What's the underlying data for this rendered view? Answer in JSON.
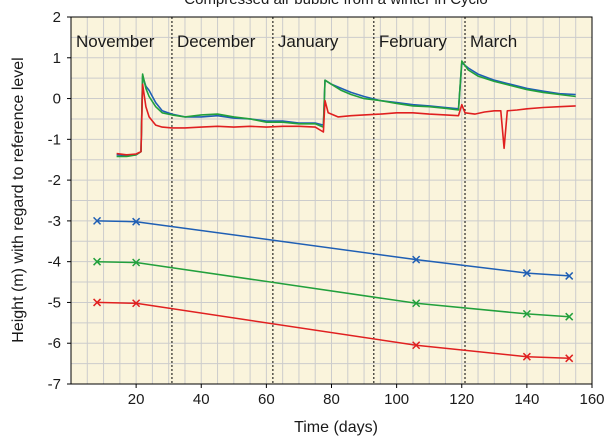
{
  "chart_data": {
    "type": "line",
    "title": "Compressed air bubble from a winter in Cyclo",
    "xlabel": "Time (days)",
    "ylabel": "Height (m) with regard to reference level",
    "xlim": [
      0,
      160
    ],
    "ylim": [
      -7,
      2
    ],
    "xticks": [
      20,
      40,
      60,
      80,
      100,
      120,
      140,
      160
    ],
    "yticks": [
      2,
      1,
      0,
      -1,
      -2,
      -3,
      -4,
      -5,
      -6,
      -7
    ],
    "grid": true,
    "background_color": "#faf4dc",
    "grid_color": "#cccccc",
    "months": [
      {
        "label": "November",
        "start": 0,
        "end": 31
      },
      {
        "label": "December",
        "start": 31,
        "end": 62
      },
      {
        "label": "January",
        "start": 62,
        "end": 93
      },
      {
        "label": "February",
        "start": 93,
        "end": 121
      },
      {
        "label": "March",
        "start": 121,
        "end": 160
      }
    ],
    "month_boundaries": [
      31,
      62,
      93,
      121
    ],
    "series": [
      {
        "color": "#1f5fb4",
        "type": "measured",
        "points": [
          [
            14,
            -1.38
          ],
          [
            17,
            -1.4
          ],
          [
            20,
            -1.38
          ],
          [
            21.5,
            -1.3
          ],
          [
            22,
            0.55
          ],
          [
            23,
            0.3
          ],
          [
            24,
            0.2
          ],
          [
            26,
            -0.1
          ],
          [
            28,
            -0.3
          ],
          [
            31,
            -0.38
          ],
          [
            35,
            -0.45
          ],
          [
            40,
            -0.45
          ],
          [
            45,
            -0.42
          ],
          [
            50,
            -0.48
          ],
          [
            55,
            -0.5
          ],
          [
            60,
            -0.55
          ],
          [
            65,
            -0.55
          ],
          [
            70,
            -0.6
          ],
          [
            75,
            -0.6
          ],
          [
            77.5,
            -0.65
          ],
          [
            78,
            0.45
          ],
          [
            80,
            0.35
          ],
          [
            83,
            0.25
          ],
          [
            86,
            0.15
          ],
          [
            90,
            0.05
          ],
          [
            95,
            -0.05
          ],
          [
            100,
            -0.1
          ],
          [
            105,
            -0.15
          ],
          [
            110,
            -0.18
          ],
          [
            115,
            -0.22
          ],
          [
            119,
            -0.25
          ],
          [
            120,
            0.88
          ],
          [
            122,
            0.75
          ],
          [
            125,
            0.6
          ],
          [
            130,
            0.45
          ],
          [
            135,
            0.35
          ],
          [
            140,
            0.25
          ],
          [
            145,
            0.18
          ],
          [
            150,
            0.12
          ],
          [
            155,
            0.1
          ]
        ]
      },
      {
        "color": "#22a03c",
        "type": "measured",
        "points": [
          [
            14,
            -1.42
          ],
          [
            17,
            -1.42
          ],
          [
            20,
            -1.38
          ],
          [
            21.5,
            -1.3
          ],
          [
            22,
            0.6
          ],
          [
            23,
            0.25
          ],
          [
            24,
            0.05
          ],
          [
            26,
            -0.2
          ],
          [
            28,
            -0.35
          ],
          [
            31,
            -0.4
          ],
          [
            35,
            -0.45
          ],
          [
            40,
            -0.4
          ],
          [
            45,
            -0.38
          ],
          [
            50,
            -0.45
          ],
          [
            55,
            -0.5
          ],
          [
            60,
            -0.58
          ],
          [
            65,
            -0.58
          ],
          [
            70,
            -0.62
          ],
          [
            75,
            -0.62
          ],
          [
            77.5,
            -0.7
          ],
          [
            78,
            0.45
          ],
          [
            80,
            0.35
          ],
          [
            83,
            0.2
          ],
          [
            86,
            0.1
          ],
          [
            90,
            0.0
          ],
          [
            95,
            -0.05
          ],
          [
            100,
            -0.12
          ],
          [
            105,
            -0.18
          ],
          [
            110,
            -0.2
          ],
          [
            115,
            -0.24
          ],
          [
            119,
            -0.28
          ],
          [
            120,
            0.92
          ],
          [
            122,
            0.7
          ],
          [
            125,
            0.55
          ],
          [
            130,
            0.42
          ],
          [
            135,
            0.32
          ],
          [
            140,
            0.22
          ],
          [
            145,
            0.15
          ],
          [
            150,
            0.1
          ],
          [
            155,
            0.05
          ]
        ]
      },
      {
        "color": "#e02020",
        "type": "measured",
        "points": [
          [
            14,
            -1.35
          ],
          [
            17,
            -1.38
          ],
          [
            20,
            -1.36
          ],
          [
            21.5,
            -1.3
          ],
          [
            22,
            0.35
          ],
          [
            23,
            -0.2
          ],
          [
            24,
            -0.45
          ],
          [
            26,
            -0.65
          ],
          [
            28,
            -0.7
          ],
          [
            31,
            -0.72
          ],
          [
            35,
            -0.72
          ],
          [
            40,
            -0.7
          ],
          [
            45,
            -0.68
          ],
          [
            50,
            -0.7
          ],
          [
            55,
            -0.68
          ],
          [
            60,
            -0.7
          ],
          [
            65,
            -0.68
          ],
          [
            70,
            -0.68
          ],
          [
            75,
            -0.7
          ],
          [
            77.5,
            -0.82
          ],
          [
            78,
            -0.05
          ],
          [
            79,
            -0.35
          ],
          [
            82,
            -0.45
          ],
          [
            86,
            -0.42
          ],
          [
            90,
            -0.4
          ],
          [
            95,
            -0.38
          ],
          [
            100,
            -0.35
          ],
          [
            105,
            -0.35
          ],
          [
            110,
            -0.38
          ],
          [
            115,
            -0.4
          ],
          [
            119,
            -0.42
          ],
          [
            120,
            -0.15
          ],
          [
            121,
            -0.35
          ],
          [
            124,
            -0.38
          ],
          [
            127,
            -0.33
          ],
          [
            130,
            -0.3
          ],
          [
            132,
            -0.3
          ],
          [
            133,
            -1.22
          ],
          [
            134,
            -0.3
          ],
          [
            137,
            -0.28
          ],
          [
            140,
            -0.25
          ],
          [
            145,
            -0.22
          ],
          [
            150,
            -0.2
          ],
          [
            155,
            -0.18
          ]
        ]
      },
      {
        "color": "#1f5fb4",
        "type": "predicted",
        "points": [
          [
            8,
            -3.0
          ],
          [
            20,
            -3.02
          ],
          [
            106,
            -3.95
          ],
          [
            140,
            -4.28
          ],
          [
            153,
            -4.35
          ]
        ]
      },
      {
        "color": "#22a03c",
        "type": "predicted",
        "points": [
          [
            8,
            -4.0
          ],
          [
            20,
            -4.02
          ],
          [
            106,
            -5.02
          ],
          [
            140,
            -5.28
          ],
          [
            153,
            -5.35
          ]
        ]
      },
      {
        "color": "#e02020",
        "type": "predicted",
        "points": [
          [
            8,
            -5.0
          ],
          [
            20,
            -5.02
          ],
          [
            106,
            -6.05
          ],
          [
            140,
            -6.33
          ],
          [
            153,
            -6.37
          ]
        ]
      }
    ]
  }
}
